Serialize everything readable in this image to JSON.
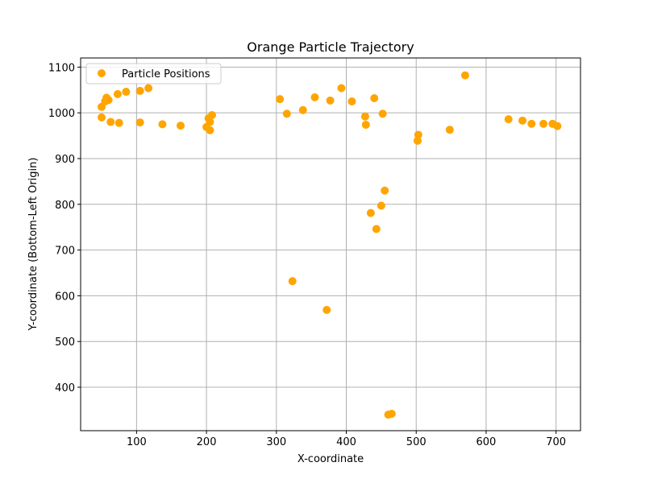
{
  "chart_data": {
    "type": "scatter",
    "title": "Orange Particle Trajectory",
    "xlabel": "X-coordinate",
    "ylabel": "Y-coordinate (Bottom-Left Origin)",
    "xlim": [
      20,
      735
    ],
    "ylim": [
      305,
      1120
    ],
    "xticks": [
      100,
      200,
      300,
      400,
      500,
      600,
      700
    ],
    "yticks": [
      400,
      500,
      600,
      700,
      800,
      900,
      1000,
      1100
    ],
    "grid": true,
    "legend_position": "top-left",
    "series": [
      {
        "name": "Particle Positions",
        "color": "#FFA500",
        "points": [
          [
            50,
            990
          ],
          [
            50,
            1013
          ],
          [
            55,
            1025
          ],
          [
            57,
            1033
          ],
          [
            60,
            1028
          ],
          [
            63,
            980
          ],
          [
            73,
            1041
          ],
          [
            75,
            978
          ],
          [
            85,
            1046
          ],
          [
            105,
            1048
          ],
          [
            105,
            979
          ],
          [
            117,
            1054
          ],
          [
            137,
            975
          ],
          [
            163,
            972
          ],
          [
            200,
            969
          ],
          [
            203,
            988
          ],
          [
            205,
            962
          ],
          [
            205,
            980
          ],
          [
            208,
            995
          ],
          [
            305,
            1030
          ],
          [
            315,
            998
          ],
          [
            323,
            632
          ],
          [
            338,
            1006
          ],
          [
            355,
            1034
          ],
          [
            372,
            569
          ],
          [
            377,
            1027
          ],
          [
            393,
            1054
          ],
          [
            408,
            1025
          ],
          [
            427,
            992
          ],
          [
            428,
            974
          ],
          [
            435,
            781
          ],
          [
            440,
            1032
          ],
          [
            443,
            746
          ],
          [
            450,
            797
          ],
          [
            452,
            998
          ],
          [
            455,
            830
          ],
          [
            460,
            340
          ],
          [
            465,
            342
          ],
          [
            502,
            939
          ],
          [
            503,
            952
          ],
          [
            548,
            963
          ],
          [
            570,
            1082
          ],
          [
            632,
            986
          ],
          [
            652,
            983
          ],
          [
            665,
            976
          ],
          [
            682,
            976
          ],
          [
            695,
            976
          ],
          [
            702,
            971
          ]
        ]
      }
    ]
  }
}
